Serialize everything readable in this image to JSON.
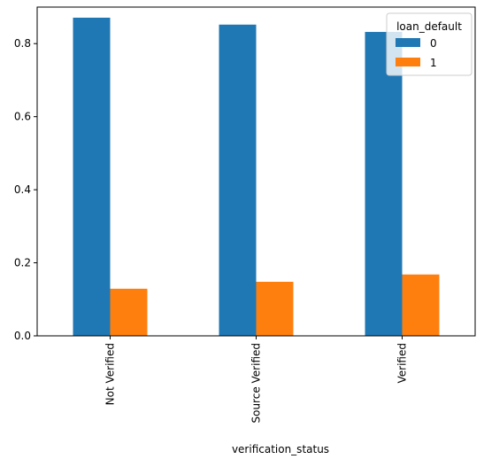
{
  "chart_data": {
    "type": "bar",
    "categories": [
      "Not Verified",
      "Source Verified",
      "Verified"
    ],
    "series": [
      {
        "name": "0",
        "values": [
          0.871,
          0.852,
          0.832
        ]
      },
      {
        "name": "1",
        "values": [
          0.129,
          0.148,
          0.168
        ]
      }
    ],
    "title": "",
    "xlabel": "verification_status",
    "ylabel": "",
    "ylim": [
      0,
      0.9
    ],
    "yticks": [
      0.0,
      0.2,
      0.4,
      0.6,
      0.8
    ],
    "ytick_labels": [
      "0.0",
      "0.2",
      "0.4",
      "0.6",
      "0.8"
    ],
    "grid": false,
    "legend": {
      "title": "loan_default",
      "placement": "top-right",
      "entries": [
        "0",
        "1"
      ]
    },
    "colors": {
      "series": [
        "#1f77b4",
        "#ff7f0e"
      ],
      "axis": "#000000",
      "legend_border": "#cccccc"
    }
  }
}
